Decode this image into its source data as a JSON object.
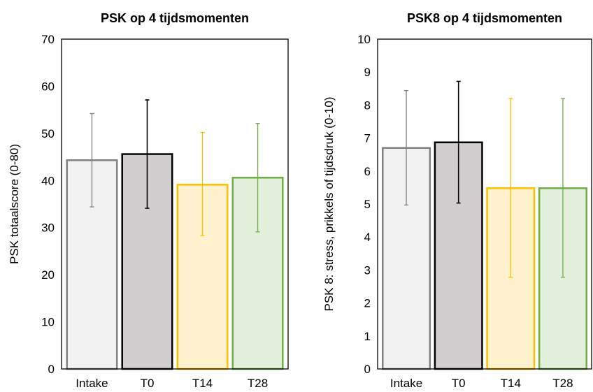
{
  "chart_data": [
    {
      "type": "bar",
      "title": "PSK op 4 tijdsmomenten",
      "ylabel": "PSK totaalscore (0-80)",
      "xlabel": "",
      "ylim": [
        0,
        70
      ],
      "yticks": [
        0,
        10,
        20,
        30,
        40,
        50,
        60,
        70
      ],
      "categories": [
        "Intake",
        "T0",
        "T14",
        "T28"
      ],
      "values": [
        44.3,
        45.6,
        39.1,
        40.6
      ],
      "error_bars": [
        {
          "low": 34.4,
          "high": 54.2
        },
        {
          "low": 34.1,
          "high": 57.1
        },
        {
          "low": 28.3,
          "high": 50.2
        },
        {
          "low": 29.1,
          "high": 52.1
        }
      ],
      "bar_fill": [
        "#f2f2f2",
        "#d0cece",
        "#fff2cc",
        "#e2efda"
      ],
      "bar_stroke": [
        "#808080",
        "#000000",
        "#ffc000",
        "#70ad47"
      ],
      "grid": false,
      "legend": false
    },
    {
      "type": "bar",
      "title": "PSK8 op 4 tijdsmomenten",
      "ylabel": "PSK 8: stress, prikkels of tijdsdruk (0-10)",
      "xlabel": "",
      "ylim": [
        0,
        10
      ],
      "yticks": [
        0,
        1,
        2,
        3,
        4,
        5,
        6,
        7,
        8,
        9,
        10
      ],
      "categories": [
        "Intake",
        "T0",
        "T14",
        "T28"
      ],
      "values": [
        6.7,
        6.87,
        5.48,
        5.48
      ],
      "error_bars": [
        {
          "low": 4.97,
          "high": 8.44
        },
        {
          "low": 5.03,
          "high": 8.72
        },
        {
          "low": 2.78,
          "high": 8.2
        },
        {
          "low": 2.78,
          "high": 8.2
        }
      ],
      "bar_fill": [
        "#f2f2f2",
        "#d0cece",
        "#fff2cc",
        "#e2efda"
      ],
      "bar_stroke": [
        "#808080",
        "#000000",
        "#ffc000",
        "#70ad47"
      ],
      "grid": false,
      "legend": false
    }
  ]
}
